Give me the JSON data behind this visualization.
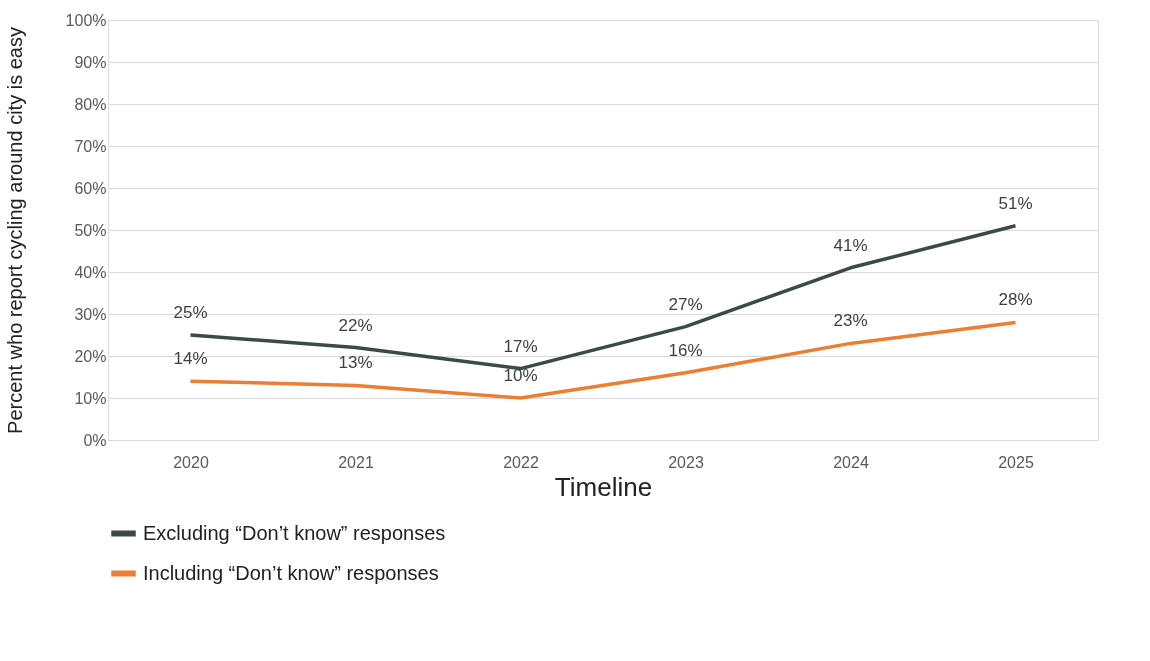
{
  "chart_data": {
    "type": "line",
    "xlabel": "Timeline",
    "ylabel": "Percent who report cycling around city is easy",
    "categories": [
      "2020",
      "2021",
      "2022",
      "2023",
      "2024",
      "2025"
    ],
    "series": [
      {
        "name": "Excluding “Don’t know” responses",
        "color": "#3b4a47",
        "values": [
          25,
          22,
          17,
          27,
          41,
          51
        ],
        "value_labels": [
          "25%",
          "22%",
          "17%",
          "27%",
          "41%",
          "51%"
        ]
      },
      {
        "name": "Including “Don’t know” responses",
        "color": "#ed7d31",
        "values": [
          14,
          13,
          10,
          16,
          23,
          28
        ],
        "value_labels": [
          "14%",
          "13%",
          "10%",
          "16%",
          "23%",
          "28%"
        ]
      }
    ],
    "ylim": [
      0,
      100
    ],
    "yticks": [
      {
        "value": 0,
        "label": "0%"
      },
      {
        "value": 10,
        "label": "10%"
      },
      {
        "value": 20,
        "label": "20%"
      },
      {
        "value": 30,
        "label": "30%"
      },
      {
        "value": 40,
        "label": "40%"
      },
      {
        "value": 50,
        "label": "50%"
      },
      {
        "value": 60,
        "label": "60%"
      },
      {
        "value": 70,
        "label": "70%"
      },
      {
        "value": 80,
        "label": "80%"
      },
      {
        "value": 90,
        "label": "90%"
      },
      {
        "value": 100,
        "label": "100%"
      }
    ],
    "grid": "y",
    "legend": "bottom left",
    "marker": "none",
    "line_style": "solid"
  }
}
